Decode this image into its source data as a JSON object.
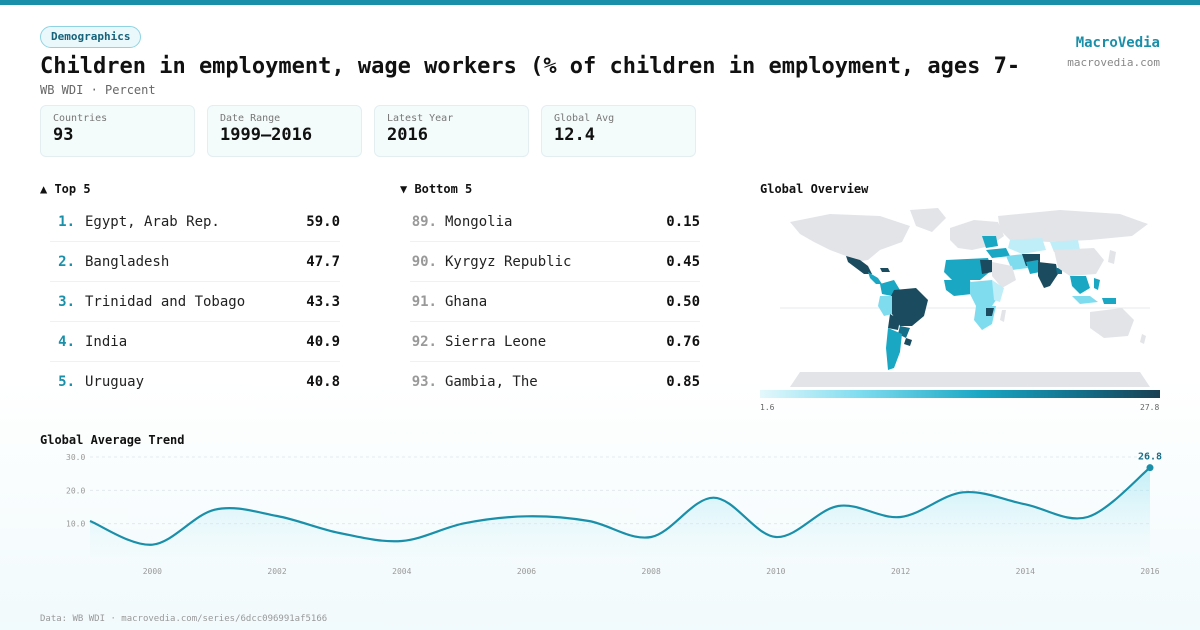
{
  "header": {
    "badge": "Demographics",
    "title": "Children in employment, wage workers (% of children in employment, ages 7-",
    "subtitle": "WB WDI · Percent",
    "brand": "MacroVedia",
    "brand_url": "macrovedia.com"
  },
  "stats": [
    {
      "label": "Countries",
      "value": "93"
    },
    {
      "label": "Date Range",
      "value": "1999–2016"
    },
    {
      "label": "Latest Year",
      "value": "2016"
    },
    {
      "label": "Global Avg",
      "value": "12.4"
    }
  ],
  "top5": {
    "heading": "▲ Top 5",
    "items": [
      {
        "rank": "1.",
        "name": "Egypt, Arab Rep.",
        "value": "59.0"
      },
      {
        "rank": "2.",
        "name": "Bangladesh",
        "value": "47.7"
      },
      {
        "rank": "3.",
        "name": "Trinidad and Tobago",
        "value": "43.3"
      },
      {
        "rank": "4.",
        "name": "India",
        "value": "40.9"
      },
      {
        "rank": "5.",
        "name": "Uruguay",
        "value": "40.8"
      }
    ]
  },
  "bottom5": {
    "heading": "▼ Bottom 5",
    "items": [
      {
        "rank": "89.",
        "name": "Mongolia",
        "value": "0.15"
      },
      {
        "rank": "90.",
        "name": "Kyrgyz Republic",
        "value": "0.45"
      },
      {
        "rank": "91.",
        "name": "Ghana",
        "value": "0.50"
      },
      {
        "rank": "92.",
        "name": "Sierra Leone",
        "value": "0.76"
      },
      {
        "rank": "93.",
        "name": "Gambia, The",
        "value": "0.85"
      }
    ]
  },
  "map": {
    "heading": "Global Overview",
    "legend_min": "1.6",
    "legend_max": "27.8",
    "colors": {
      "land": "#e2e4e8",
      "low": "#bfeef8",
      "mid": "#1aa7c4",
      "high": "#1a4b5e"
    }
  },
  "trend": {
    "heading": "Global Average Trend"
  },
  "chart_data": {
    "type": "area",
    "title": "Global Average Trend",
    "x": [
      1999,
      2000,
      2001,
      2002,
      2003,
      2004,
      2005,
      2006,
      2007,
      2008,
      2009,
      2010,
      2011,
      2012,
      2013,
      2014,
      2015,
      2016
    ],
    "values": [
      10.8,
      3.7,
      14.2,
      12.3,
      7.2,
      4.8,
      10.1,
      12.2,
      10.8,
      6.0,
      17.8,
      6.0,
      15.3,
      12.0,
      19.4,
      15.8,
      12.0,
      26.8
    ],
    "x_ticks": [
      2000,
      2002,
      2004,
      2006,
      2008,
      2010,
      2012,
      2014,
      2016
    ],
    "y_ticks": [
      "10.0",
      "20.0",
      "30.0"
    ],
    "ylim": [
      0,
      30
    ],
    "last_label": "26.8",
    "color": "#1a8fa9",
    "grid": true
  },
  "footer": "Data: WB WDI · macrovedia.com/series/6dcc096991af5166"
}
